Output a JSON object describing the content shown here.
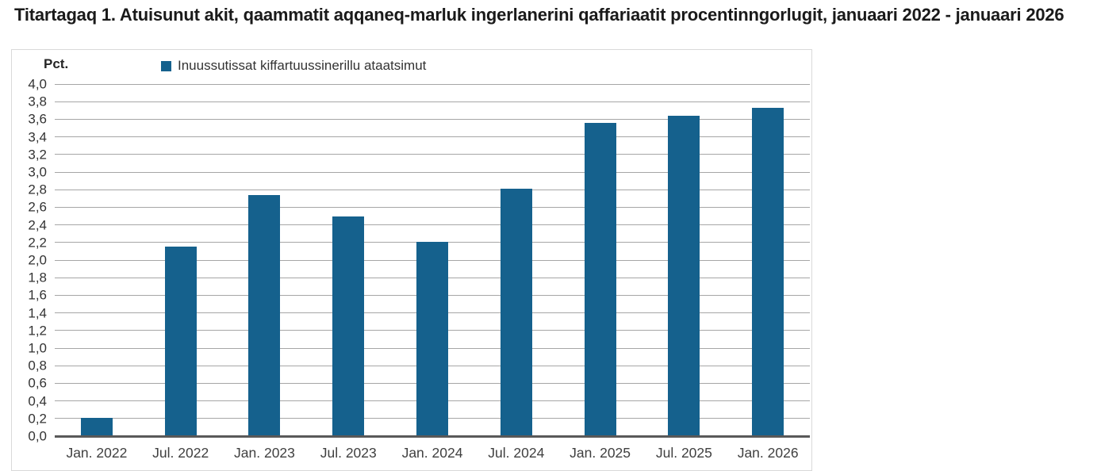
{
  "page": {
    "title": "Titartagaq 1. Atuisunut akit, qaammatit aqqaneq-marluk ingerlanerini qaffariaatit procentinngorlugit, januaari 2022 - januaari 2026"
  },
  "chart": {
    "unit_label": "Pct.",
    "legend": {
      "label": "Inuussutissat kiffartuussinerillu ataatsimut",
      "marker_color": "#15618d"
    }
  },
  "chart_data": {
    "type": "bar",
    "title": "Titartagaq 1. Atuisunut akit, qaammatit aqqaneq-marluk ingerlanerini qaffariaatit procentinngorlugit, januaari 2022 - januaari 2026",
    "categories": [
      "Jan. 2022",
      "Jul. 2022",
      "Jan. 2023",
      "Jul. 2023",
      "Jan. 2024",
      "Jul. 2024",
      "Jan. 2025",
      "Jul. 2025",
      "Jan. 2026"
    ],
    "series": [
      {
        "name": "Inuussutissat kiffartuussinerillu ataatsimut",
        "values": [
          0.21,
          2.15,
          2.74,
          2.5,
          2.21,
          2.81,
          3.56,
          3.64,
          3.73
        ]
      }
    ],
    "xlabel": "",
    "ylabel": "Pct.",
    "ylim": [
      0,
      4.0
    ],
    "ytick_step": 0.2,
    "decimal_separator": ",",
    "grid": true,
    "legend_position": "top"
  },
  "colors": {
    "bar": "#15618d",
    "gridline": "#a6a6a6",
    "axis": "#595959",
    "tick_text": "#333333",
    "title_text": "#1a1a1a",
    "box_border": "#d9d9d9"
  }
}
